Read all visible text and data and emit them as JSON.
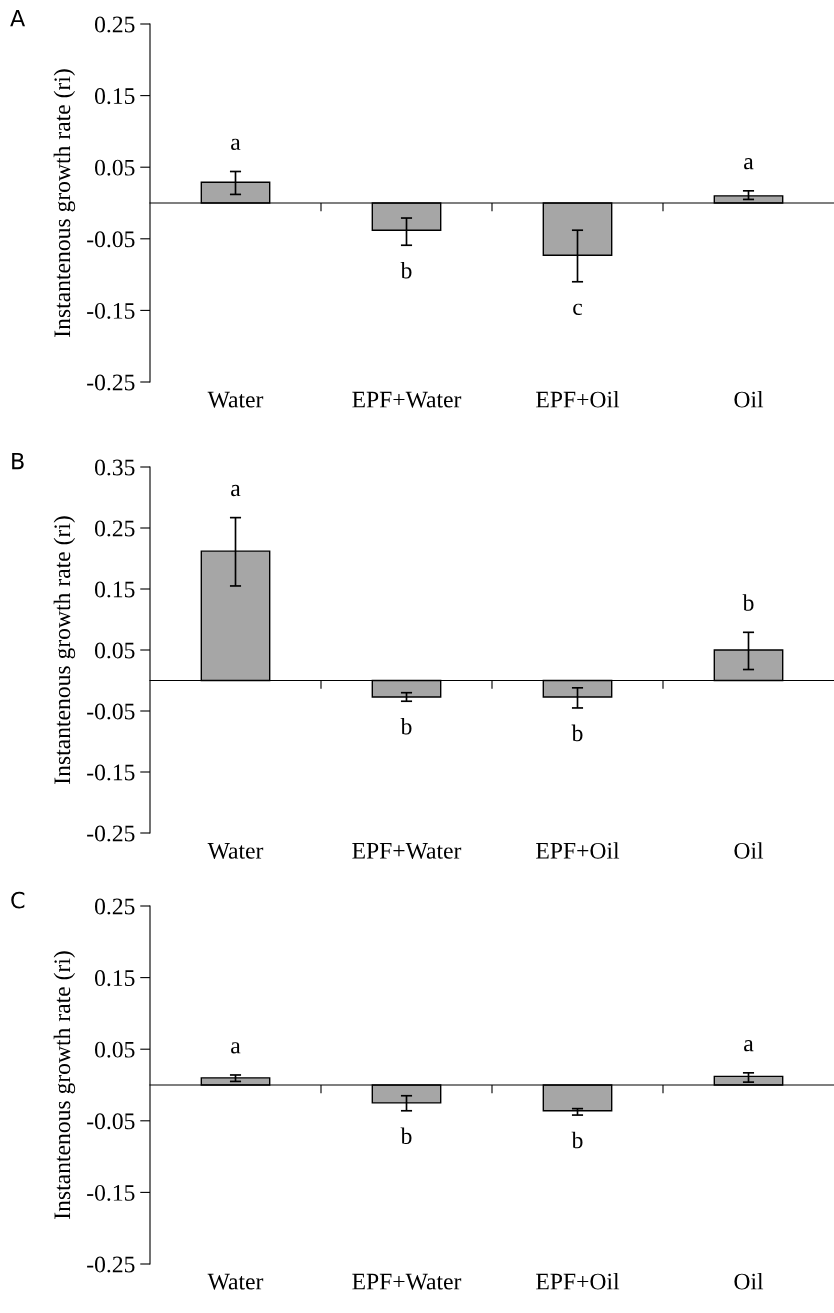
{
  "chart_data": [
    {
      "type": "bar",
      "title": "A",
      "ylabel": "Instantenous growth rate (ri)",
      "categories": [
        "Water",
        "EPF+Water",
        "EPF+Oil",
        "Oil"
      ],
      "values": [
        0.029,
        -0.038,
        -0.073,
        0.01
      ],
      "color": "#a6a6a6",
      "errors": [
        [
          0.012,
          0.044
        ],
        [
          -0.059,
          -0.021
        ],
        [
          -0.11,
          -0.038
        ],
        [
          0.005,
          0.017
        ]
      ],
      "ylim": [
        -0.25,
        0.25
      ],
      "yticks": [
        -0.25,
        -0.15,
        -0.05,
        0.05,
        0.15,
        0.25
      ],
      "annotations": [
        "a",
        "b",
        "c",
        "a"
      ]
    },
    {
      "type": "bar",
      "title": "B",
      "ylabel": "Instantenous growth rate (ri)",
      "categories": [
        "Water",
        "EPF+Water",
        "EPF+Oil",
        "Oil"
      ],
      "values": [
        0.212,
        -0.027,
        -0.027,
        0.05
      ],
      "color": "#a6a6a6",
      "errors": [
        [
          0.155,
          0.267
        ],
        [
          -0.034,
          -0.02
        ],
        [
          -0.045,
          -0.012
        ],
        [
          0.018,
          0.079
        ]
      ],
      "ylim": [
        -0.25,
        0.35
      ],
      "yticks": [
        -0.25,
        -0.15,
        -0.05,
        0.05,
        0.15,
        0.25,
        0.35
      ],
      "annotations": [
        "a",
        "b",
        "b",
        "b"
      ]
    },
    {
      "type": "bar",
      "title": "C",
      "ylabel": "Instantenous growth rate (ri)",
      "categories": [
        "Water",
        "EPF+Water",
        "EPF+Oil",
        "Oil"
      ],
      "values": [
        0.01,
        -0.025,
        -0.036,
        0.012
      ],
      "color": "#a6a6a6",
      "errors": [
        [
          0.005,
          0.014
        ],
        [
          -0.036,
          -0.015
        ],
        [
          -0.042,
          -0.033
        ],
        [
          0.004,
          0.017
        ]
      ],
      "ylim": [
        -0.25,
        0.25
      ],
      "yticks": [
        -0.25,
        -0.15,
        -0.05,
        0.05,
        0.15,
        0.25
      ],
      "annotations": [
        "a",
        "b",
        "b",
        "a"
      ]
    }
  ]
}
